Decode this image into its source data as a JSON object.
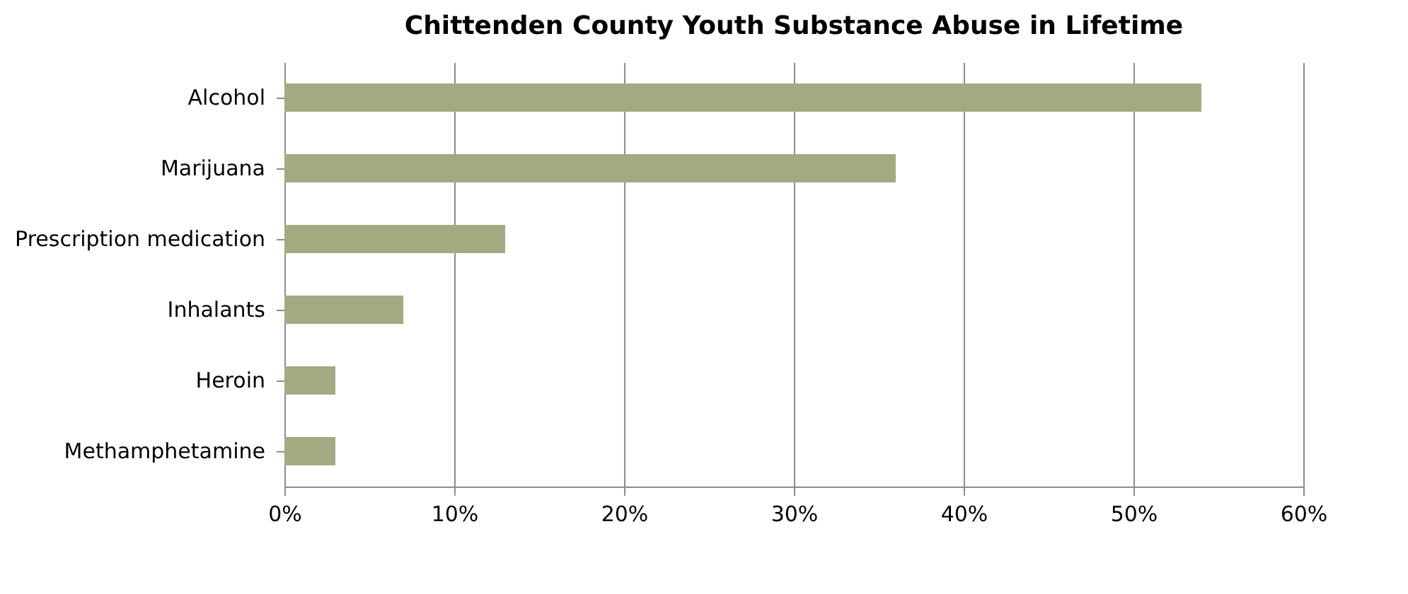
{
  "chart_data": {
    "type": "bar",
    "orientation": "horizontal",
    "title": "Chittenden County Youth Substance Abuse in Lifetime",
    "categories": [
      "Alcohol",
      "Marijuana",
      "Prescription medication",
      "Inhalants",
      "Heroin",
      "Methamphetamine"
    ],
    "values": [
      54,
      36,
      13,
      7,
      3,
      3
    ],
    "color": "#a3aa81",
    "xlim": [
      0,
      60
    ],
    "xticks": [
      {
        "value": 0,
        "label": "0%"
      },
      {
        "value": 10,
        "label": "10%"
      },
      {
        "value": 20,
        "label": "20%"
      },
      {
        "value": 30,
        "label": "30%"
      },
      {
        "value": 40,
        "label": "40%"
      },
      {
        "value": 50,
        "label": "50%"
      },
      {
        "value": 60,
        "label": "60%"
      }
    ],
    "grid": "x"
  }
}
